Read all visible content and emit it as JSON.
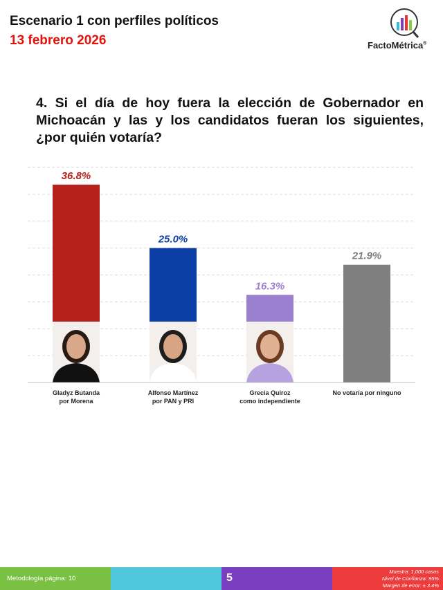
{
  "header": {
    "title": "Escenario 1 con perfiles políticos",
    "date": "13 febrero 2026",
    "logo": "FactoMétrica",
    "logo_mark": "®"
  },
  "question": "4. Si el día de hoy fuera la elección de Gobernador en Michoacán y las y los candidatos fueran los siguientes, ¿por quién votaría?",
  "chart_data": {
    "type": "bar",
    "categories": [
      "Gladyz Butanda\npor Morena",
      "Alfonso Martínez\npor PAN y PRI",
      "Grecia Quiroz\ncomo independiente",
      "No votaría por ninguno"
    ],
    "values": [
      36.8,
      25.0,
      16.3,
      21.9
    ],
    "value_labels": [
      "36.8%",
      "25.0%",
      "16.3%",
      "21.9%"
    ],
    "colors": [
      "#b5221c",
      "#0b3fa6",
      "#9a7fcf",
      "#7f7f7f"
    ],
    "ylim": [
      0,
      40
    ],
    "yticks": [
      0,
      5,
      10,
      15,
      20,
      25,
      30,
      35,
      40
    ],
    "grid": true
  },
  "footer": {
    "methodology": "Metodología página: 10",
    "page": "5",
    "notes": [
      "Muestra: 1,000 casos",
      "Nivel de Confianza: 95%",
      "Margen de error: ± 3.4%"
    ]
  }
}
